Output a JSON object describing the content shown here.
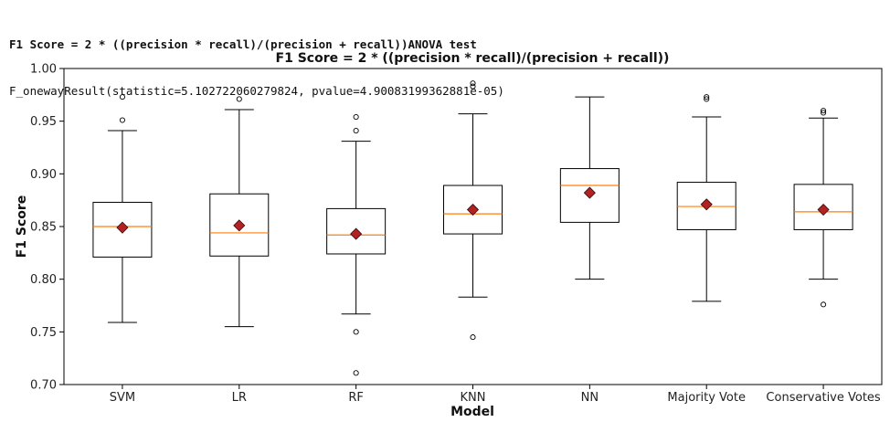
{
  "output": {
    "heading": "F1 Score = 2 * ((precision * recall)/(precision + recall))ANOVA test",
    "result_line": "F_onewayResult(statistic=5.102722060279824, pvalue=4.90083199362881e-05)"
  },
  "chart_data": {
    "type": "box",
    "title": "F1 Score = 2 * ((precision * recall)/(precision + recall))",
    "xlabel": "Model",
    "ylabel": "F1 Score",
    "ylim": [
      0.7,
      1.0
    ],
    "yticks": [
      "0.70",
      "0.75",
      "0.80",
      "0.85",
      "0.90",
      "0.95",
      "1.00"
    ],
    "grid": false,
    "categories": [
      "SVM",
      "LR",
      "RF",
      "KNN",
      "NN",
      "Majority Vote",
      "Conservative Votes"
    ],
    "boxes": [
      {
        "q1": 0.821,
        "median": 0.85,
        "q3": 0.873,
        "whisker_low": 0.759,
        "whisker_high": 0.941,
        "mean": 0.849,
        "outliers": [
          0.951,
          0.973
        ]
      },
      {
        "q1": 0.822,
        "median": 0.844,
        "q3": 0.881,
        "whisker_low": 0.755,
        "whisker_high": 0.961,
        "mean": 0.851,
        "outliers": [
          0.971
        ]
      },
      {
        "q1": 0.824,
        "median": 0.842,
        "q3": 0.867,
        "whisker_low": 0.767,
        "whisker_high": 0.931,
        "mean": 0.843,
        "outliers": [
          0.941,
          0.954,
          0.75,
          0.711
        ]
      },
      {
        "q1": 0.843,
        "median": 0.862,
        "q3": 0.889,
        "whisker_low": 0.783,
        "whisker_high": 0.957,
        "mean": 0.866,
        "outliers": [
          0.983,
          0.986,
          0.745
        ]
      },
      {
        "q1": 0.854,
        "median": 0.889,
        "q3": 0.905,
        "whisker_low": 0.8,
        "whisker_high": 0.973,
        "mean": 0.882,
        "outliers": []
      },
      {
        "q1": 0.847,
        "median": 0.869,
        "q3": 0.892,
        "whisker_low": 0.779,
        "whisker_high": 0.954,
        "mean": 0.871,
        "outliers": [
          0.971,
          0.973
        ]
      },
      {
        "q1": 0.847,
        "median": 0.864,
        "q3": 0.89,
        "whisker_low": 0.8,
        "whisker_high": 0.953,
        "mean": 0.866,
        "outliers": [
          0.958,
          0.96,
          0.776
        ]
      }
    ],
    "colors": {
      "median": "#ff7f0e",
      "mean_marker": "#b22222",
      "mean_edge": "#3a0a0a",
      "box": "#000000"
    }
  }
}
